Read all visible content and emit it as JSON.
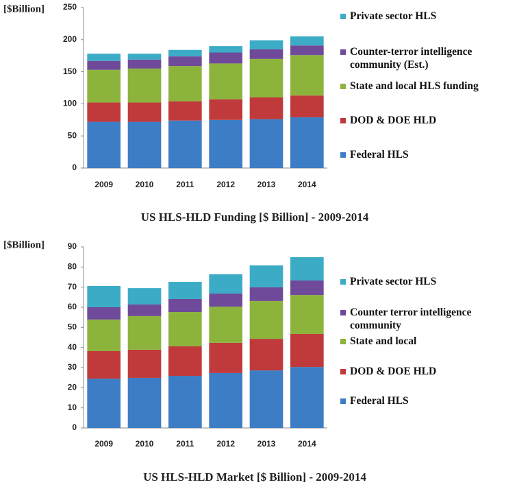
{
  "chart_data": [
    {
      "type": "bar",
      "stacked": true,
      "title": "US HLS-HLD Funding [$ Billion] - 2009-2014",
      "y_label": "[$Billion]",
      "categories": [
        "2009",
        "2010",
        "2011",
        "2012",
        "2013",
        "2014"
      ],
      "ylim": [
        0,
        250
      ],
      "yticks": [
        0,
        50,
        100,
        150,
        200,
        250
      ],
      "series": [
        {
          "name": "Federal HLS",
          "color": "#3d7dc5",
          "values": [
            72,
            72,
            74,
            75,
            76,
            79
          ]
        },
        {
          "name": "DOD & DOE HLD",
          "color": "#c0393b",
          "values": [
            30,
            30,
            30,
            32,
            34,
            34
          ]
        },
        {
          "name": "State and local HLS funding",
          "color": "#8cb43c",
          "values": [
            51,
            53,
            55,
            56,
            60,
            63
          ]
        },
        {
          "name": "Counter-terror intelligence community (Est.)",
          "color": "#6f4a9a",
          "values": [
            14,
            14,
            15,
            17,
            15,
            15
          ]
        },
        {
          "name": "Private sector HLS",
          "color": "#3cacc6",
          "values": [
            11,
            9,
            10,
            10,
            14,
            14
          ]
        }
      ]
    },
    {
      "type": "bar",
      "stacked": true,
      "title": "US HLS-HLD Market [$ Billion] - 2009-2014",
      "y_label": "[$Billion]",
      "categories": [
        "2009",
        "2010",
        "2011",
        "2012",
        "2013",
        "2014"
      ],
      "ylim": [
        0,
        90
      ],
      "yticks": [
        0,
        10,
        20,
        30,
        40,
        50,
        60,
        70,
        80,
        90
      ],
      "series": [
        {
          "name": "Federal HLS",
          "color": "#3d7dc5",
          "values": [
            24.5,
            24.9,
            25.9,
            27.3,
            28.6,
            30.3
          ]
        },
        {
          "name": "DOD & DOE HLD",
          "color": "#c0393b",
          "values": [
            13.7,
            14,
            14.7,
            15,
            15.7,
            16.4
          ]
        },
        {
          "name": "State and local",
          "color": "#8cb43c",
          "values": [
            15.7,
            16.7,
            17,
            18,
            18.8,
            19.4
          ]
        },
        {
          "name": "Counter terror intelligence community",
          "color": "#6f4a9a",
          "values": [
            6.1,
            5.8,
            6.5,
            6.5,
            6.8,
            7.2
          ]
        },
        {
          "name": "Private sector HLS",
          "color": "#3cacc6",
          "values": [
            10.6,
            8.1,
            8.5,
            9.6,
            10.9,
            11.6
          ]
        }
      ]
    }
  ]
}
